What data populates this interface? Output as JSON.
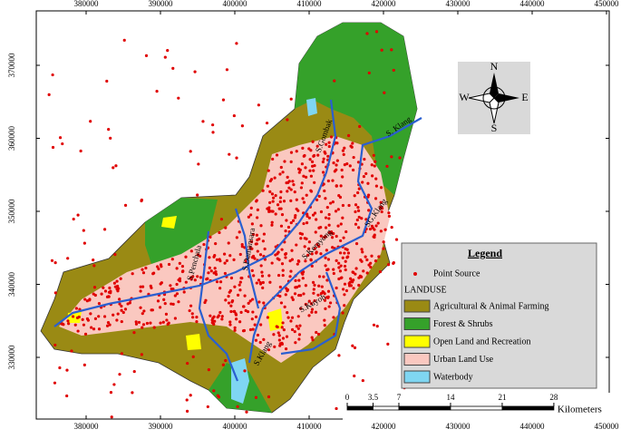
{
  "map": {
    "xticks": [
      380000,
      390000,
      400000,
      410000,
      420000,
      430000,
      440000,
      450000
    ],
    "yticks": [
      330000,
      340000,
      350000,
      360000,
      370000
    ],
    "rivers": [
      "S.Gombak",
      "S. Klang",
      "SG.Klang",
      "S.Kerayong",
      "S.Penchala",
      "S.Damansara",
      "S.Kuyoh",
      "S.Klang"
    ]
  },
  "legend": {
    "title": "Legend",
    "point_label": "Point Source",
    "group_label": "LANDUSE",
    "items": [
      {
        "label": "Agricultural & Animal Farming",
        "color": "#9a8a14"
      },
      {
        "label": "Forest & Shrubs",
        "color": "#35a12a"
      },
      {
        "label": "Open Land and Recreation",
        "color": "#ffff00"
      },
      {
        "label": "Urban Land Use",
        "color": "#fac8c0"
      },
      {
        "label": "Waterbody",
        "color": "#7fd6f2"
      }
    ]
  },
  "compass": {
    "n": "N",
    "s": "S",
    "e": "E",
    "w": "W"
  },
  "scale_bar": {
    "ticks": [
      0,
      3.5,
      7,
      14,
      21,
      28
    ],
    "unit": "Kilometers"
  }
}
